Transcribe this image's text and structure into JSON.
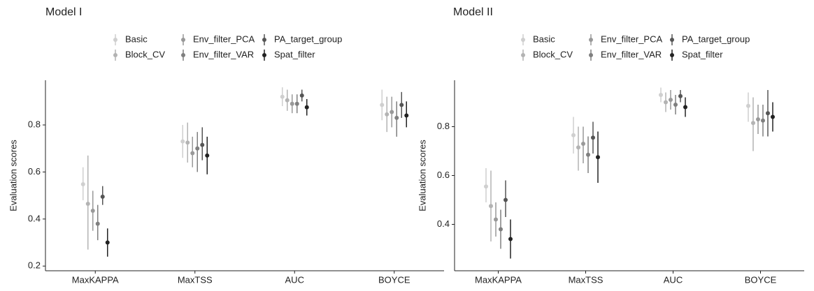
{
  "chart_data": [
    {
      "type": "pointrange",
      "title": "Model I",
      "y_label": "Evaluation scores",
      "categories": [
        "MaxKAPPA",
        "MaxTSS",
        "AUC",
        "BOYCE"
      ],
      "ylim": [
        0.18,
        0.99
      ],
      "yticks": [
        0.2,
        0.4,
        0.6,
        0.8
      ],
      "series": [
        {
          "name": "Basic",
          "color": "#cfcfcf",
          "values": [
            0.548,
            0.73,
            0.92,
            0.885
          ],
          "lower": [
            0.48,
            0.66,
            0.88,
            0.82
          ],
          "upper": [
            0.62,
            0.8,
            0.96,
            0.95
          ]
        },
        {
          "name": "Block_CV",
          "color": "#b3b3b3",
          "values": [
            0.465,
            0.725,
            0.905,
            0.845
          ],
          "lower": [
            0.27,
            0.64,
            0.86,
            0.77
          ],
          "upper": [
            0.67,
            0.81,
            0.95,
            0.92
          ]
        },
        {
          "name": "Env_filter_PCA",
          "color": "#999999",
          "values": [
            0.435,
            0.68,
            0.89,
            0.855
          ],
          "lower": [
            0.35,
            0.62,
            0.85,
            0.79
          ],
          "upper": [
            0.52,
            0.75,
            0.93,
            0.92
          ]
        },
        {
          "name": "Env_filter_VAR",
          "color": "#7f7f7f",
          "values": [
            0.38,
            0.7,
            0.89,
            0.83
          ],
          "lower": [
            0.31,
            0.6,
            0.85,
            0.75
          ],
          "upper": [
            0.46,
            0.77,
            0.93,
            0.9
          ]
        },
        {
          "name": "PA_target_group",
          "color": "#555555",
          "values": [
            0.495,
            0.715,
            0.925,
            0.885
          ],
          "lower": [
            0.46,
            0.65,
            0.9,
            0.83
          ],
          "upper": [
            0.54,
            0.79,
            0.95,
            0.94
          ]
        },
        {
          "name": "Spat_filter",
          "color": "#222222",
          "values": [
            0.3,
            0.67,
            0.875,
            0.84
          ],
          "lower": [
            0.24,
            0.59,
            0.84,
            0.79
          ],
          "upper": [
            0.36,
            0.75,
            0.91,
            0.9
          ]
        }
      ]
    },
    {
      "type": "pointrange",
      "title": "Model II",
      "y_label": "Evaluation scores",
      "categories": [
        "MaxKAPPA",
        "MaxTSS",
        "AUC",
        "BOYCE"
      ],
      "ylim": [
        0.21,
        0.99
      ],
      "yticks": [
        0.4,
        0.6,
        0.8
      ],
      "series": [
        {
          "name": "Basic",
          "color": "#cfcfcf",
          "values": [
            0.555,
            0.765,
            0.93,
            0.885
          ],
          "lower": [
            0.49,
            0.69,
            0.9,
            0.82
          ],
          "upper": [
            0.63,
            0.84,
            0.96,
            0.94
          ]
        },
        {
          "name": "Block_CV",
          "color": "#b3b3b3",
          "values": [
            0.475,
            0.715,
            0.9,
            0.815
          ],
          "lower": [
            0.33,
            0.62,
            0.86,
            0.7
          ],
          "upper": [
            0.62,
            0.8,
            0.94,
            0.92
          ]
        },
        {
          "name": "Env_filter_PCA",
          "color": "#999999",
          "values": [
            0.42,
            0.73,
            0.91,
            0.83
          ],
          "lower": [
            0.35,
            0.65,
            0.87,
            0.77
          ],
          "upper": [
            0.49,
            0.8,
            0.95,
            0.89
          ]
        },
        {
          "name": "Env_filter_VAR",
          "color": "#7f7f7f",
          "values": [
            0.38,
            0.685,
            0.89,
            0.825
          ],
          "lower": [
            0.3,
            0.61,
            0.85,
            0.76
          ],
          "upper": [
            0.46,
            0.76,
            0.93,
            0.89
          ]
        },
        {
          "name": "PA_target_group",
          "color": "#555555",
          "values": [
            0.5,
            0.755,
            0.925,
            0.855
          ],
          "lower": [
            0.43,
            0.69,
            0.9,
            0.76
          ],
          "upper": [
            0.58,
            0.82,
            0.95,
            0.95
          ]
        },
        {
          "name": "Spat_filter",
          "color": "#222222",
          "values": [
            0.34,
            0.675,
            0.88,
            0.84
          ],
          "lower": [
            0.26,
            0.57,
            0.84,
            0.78
          ],
          "upper": [
            0.42,
            0.78,
            0.92,
            0.9
          ]
        }
      ]
    }
  ]
}
